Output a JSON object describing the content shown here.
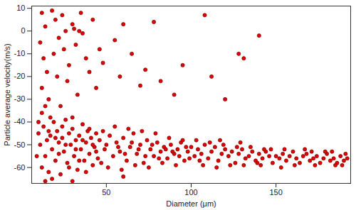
{
  "chart_data": {
    "type": "scatter",
    "x_label": "Diameter (μm)",
    "y_label": "Particle average velocity(m/s)",
    "color": "#e00000",
    "marker": "circle",
    "grid": false,
    "xlim": [
      6,
      194
    ],
    "ylim": [
      -67,
      11
    ],
    "xticks": [
      50,
      100,
      150
    ],
    "yticks": [
      -60,
      -50,
      -40,
      -30,
      -20,
      -10,
      0,
      10
    ],
    "x": [
      12,
      14,
      11,
      13,
      15,
      12,
      16,
      18,
      20,
      22,
      19,
      21,
      24,
      26,
      25,
      28,
      27,
      30,
      32,
      33,
      35,
      36,
      38,
      40,
      42,
      44,
      46,
      31,
      34,
      48,
      55,
      60,
      58,
      65,
      70,
      73,
      78,
      82,
      90,
      95,
      108,
      112,
      120,
      128,
      131,
      140,
      10,
      9,
      17,
      23,
      10,
      11,
      12,
      13,
      14,
      15,
      16,
      17,
      18,
      19,
      20,
      21,
      22,
      23,
      24,
      25,
      26,
      27,
      28,
      29,
      30,
      31,
      32,
      33,
      34,
      35,
      36,
      37,
      38,
      39,
      40,
      41,
      42,
      43,
      44,
      45,
      12,
      14,
      16,
      18,
      20,
      22,
      24,
      26,
      28,
      30,
      32,
      34,
      36,
      38,
      40,
      42,
      44,
      46,
      47,
      48,
      49,
      50,
      52,
      54,
      56,
      58,
      60,
      62,
      64,
      66,
      68,
      70,
      72,
      74,
      76,
      78,
      80,
      82,
      84,
      86,
      88,
      90,
      92,
      94,
      96,
      98,
      100,
      51,
      55,
      59,
      63,
      67,
      71,
      75,
      79,
      83,
      87,
      91,
      95,
      99,
      57,
      61,
      65,
      69,
      73,
      77,
      81,
      85,
      89,
      93,
      97,
      102,
      104,
      106,
      108,
      110,
      112,
      114,
      116,
      118,
      120,
      122,
      124,
      126,
      128,
      130,
      132,
      134,
      136,
      138,
      140,
      142,
      144,
      146,
      148,
      150,
      103,
      107,
      111,
      115,
      119,
      123,
      127,
      131,
      135,
      139,
      143,
      147,
      105,
      117,
      129,
      141,
      152,
      154,
      156,
      158,
      160,
      162,
      164,
      166,
      168,
      170,
      172,
      174,
      176,
      178,
      180,
      182,
      184,
      186,
      188,
      190,
      192,
      155,
      161,
      167,
      173,
      179,
      185,
      191,
      153,
      171,
      183,
      189,
      14,
      30,
      60
    ],
    "values": [
      8,
      2,
      -5,
      -12,
      -18,
      -25,
      -30,
      9,
      5,
      -3,
      -10,
      -20,
      7,
      0,
      -8,
      -15,
      -22,
      3,
      -6,
      -28,
      8,
      -1,
      -12,
      -18,
      5,
      -25,
      -8,
      1,
      0,
      -14,
      -4,
      3,
      -20,
      -10,
      -24,
      -17,
      4,
      -22,
      -28,
      -15,
      7,
      -20,
      -30,
      -10,
      -12,
      -2,
      -40,
      -55,
      -38,
      -33,
      -45,
      -50,
      -60,
      -42,
      -55,
      -48,
      -62,
      -46,
      -52,
      -40,
      -57,
      -44,
      -49,
      -63,
      -47,
      -53,
      -39,
      -58,
      -45,
      -50,
      -43,
      -55,
      -48,
      -61,
      -46,
      -52,
      -41,
      -57,
      -49,
      -44,
      -54,
      -47,
      -59,
      -51,
      -45,
      -56,
      -36,
      -33,
      -44,
      -65,
      -47,
      -54,
      -42,
      -50,
      -60,
      -38,
      -52,
      -57,
      -48,
      -62,
      -43,
      -50,
      -53,
      -48,
      -58,
      -44,
      -52,
      -50,
      -46,
      -55,
      -49,
      -53,
      -47,
      -57,
      -51,
      -45,
      -54,
      -50,
      -58,
      -48,
      -52,
      -55,
      -49,
      -53,
      -51,
      -56,
      -50,
      -54,
      -52,
      -49,
      -57,
      -53,
      -51,
      -60,
      -42,
      -61,
      -43,
      -59,
      -44,
      -60,
      -45,
      -58,
      -47,
      -59,
      -48,
      -56,
      -51,
      -54,
      -49,
      -52,
      -55,
      -50,
      -56,
      -52,
      -53,
      -55,
      -51,
      -55,
      -52,
      -54,
      -50,
      -56,
      -53,
      -51,
      -57,
      -54,
      -52,
      -55,
      -53,
      -58,
      -54,
      -52,
      -56,
      -55,
      -53,
      -57,
      -54,
      -56,
      -53,
      -55,
      -58,
      -55,
      -48,
      -59,
      -49,
      -60,
      -50,
      -59,
      -51,
      -59,
      -51,
      -58,
      -52,
      -52,
      -57,
      -48,
      -49,
      -59,
      -56,
      -54,
      -57,
      -55,
      -53,
      -56,
      -58,
      -55,
      -54,
      -57,
      -56,
      -55,
      -58,
      -56,
      -54,
      -57,
      -56,
      -58,
      -55,
      -57,
      -56,
      -52,
      -59,
      -52,
      -59,
      -53,
      -59,
      -54,
      -60,
      -53,
      -53,
      -59,
      -66,
      -66,
      -64
    ]
  }
}
